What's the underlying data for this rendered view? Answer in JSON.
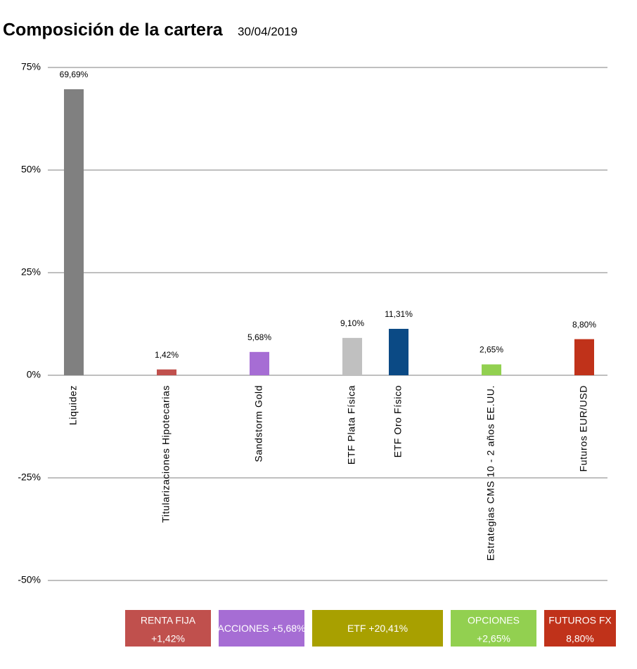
{
  "chart_data": {
    "type": "bar",
    "title": "Composición de la cartera",
    "subtitle": "30/04/2019",
    "categories": [
      "Liquidez",
      null,
      "Titularizaciones Hipotecarias",
      null,
      "Sandstorm Gold",
      null,
      "ETF Plata Física",
      "ETF Oro Físico",
      null,
      "Estrategias CMS 10 - 2 años EE.UU.",
      null,
      "Futuros EUR/USD"
    ],
    "values": [
      69.69,
      null,
      1.42,
      null,
      5.68,
      null,
      9.1,
      11.31,
      null,
      2.65,
      null,
      8.8
    ],
    "value_labels": [
      "69,69%",
      null,
      "1,42%",
      null,
      "5,68%",
      null,
      "9,10%",
      "11,31%",
      null,
      "2,65%",
      null,
      "8,80%"
    ],
    "colors": [
      "#808080",
      null,
      "#c0504d",
      null,
      "#a66dd4",
      null,
      "#c0c0c0",
      "#0b4a85",
      null,
      "#92d050",
      null,
      "#c0321a"
    ],
    "ylim": [
      -50,
      75
    ],
    "yticks": [
      {
        "value": -50,
        "label": "-50%"
      },
      {
        "value": -25,
        "label": "-25%"
      },
      {
        "value": 0,
        "label": "0%"
      },
      {
        "value": 25,
        "label": "25%"
      },
      {
        "value": 50,
        "label": "50%"
      },
      {
        "value": 75,
        "label": "75%"
      }
    ],
    "grid": true,
    "groups": [
      {
        "name": "RENTA FIJA",
        "label": "+1,42%",
        "color": "#c0504d"
      },
      {
        "name": "ACCIONES",
        "label": "+5,68%",
        "color": "#a66dd4"
      },
      {
        "name": "ETF",
        "label": "+20,41%",
        "color": "#a8a000"
      },
      {
        "name": "OPCIONES",
        "label": "+2,65%",
        "color": "#92d050"
      },
      {
        "name": "FUTUROS FX",
        "label": "8,80%",
        "color": "#c0321a"
      }
    ]
  }
}
